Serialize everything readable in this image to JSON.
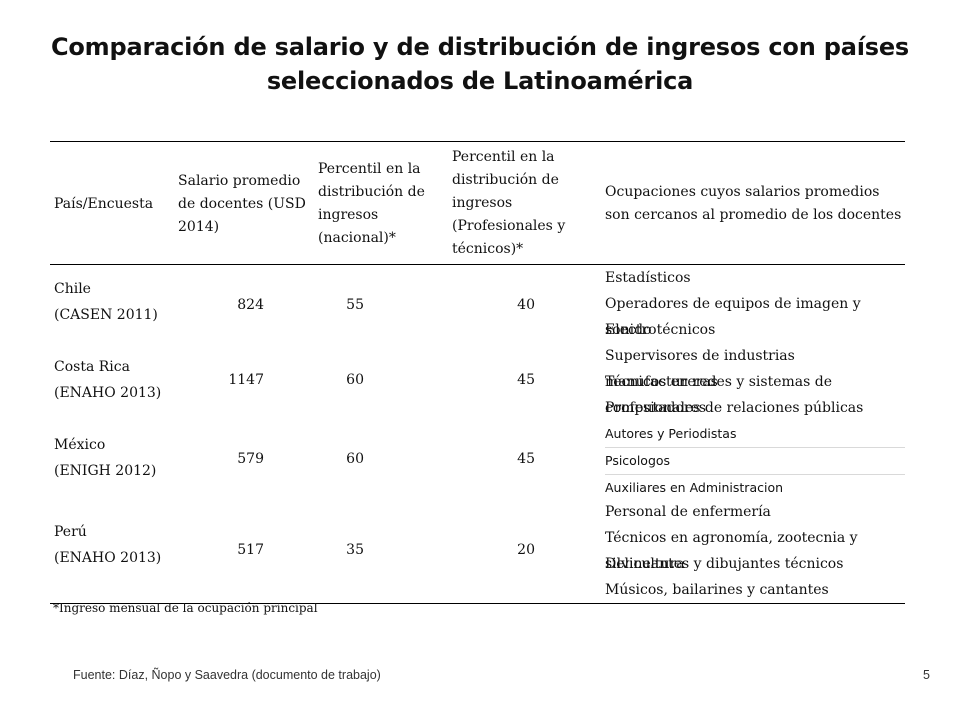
{
  "title": {
    "line1": "Comparación de salario y de distribución de ingresos con países",
    "line2": "seleccionados de Latinoamérica"
  },
  "table": {
    "headers": {
      "country": "País/Encuesta",
      "salary": "Salario promedio de docentes (USD 2014)",
      "pct_national": "Percentil en la distribución de ingresos (nacional)*",
      "pct_prof": "Percentil en la distribución de ingresos (Profesionales y técnicos)*",
      "occupations": "Ocupaciones cuyos salarios promedios son cercanos al promedio de los docentes"
    },
    "rows": [
      {
        "country": "Chile",
        "survey": "(CASEN 2011)",
        "salary": "824",
        "pct_national": "55",
        "pct_prof": "40",
        "occupations": [
          "Estadísticos",
          "Operadores de equipos de imagen y sonido",
          "Electrotécnicos"
        ]
      },
      {
        "country": "Costa Rica",
        "survey": "(ENAHO 2013)",
        "salary": "1147",
        "pct_national": "60",
        "pct_prof": "45",
        "occupations": [
          "Supervisores de industrias manufactureras",
          "Técnicos en redes y sistemas de computadores",
          "Profesionales de relaciones públicas"
        ]
      },
      {
        "country": "México",
        "survey": "(ENIGH 2012)",
        "salary": "579",
        "pct_national": "60",
        "pct_prof": "45",
        "occupations": [
          "Autores y Periodistas",
          "Psicologos",
          "Auxiliares en Administracion"
        ]
      },
      {
        "country": "Perú",
        "survey": "(ENAHO 2013)",
        "salary": "517",
        "pct_national": "35",
        "pct_prof": "20",
        "occupations": [
          "Personal de enfermería",
          "Técnicos en agronomía, zootecnia y silvicultura",
          "Delineantes y dibujantes técnicos",
          "Músicos, bailarines y cantantes"
        ]
      }
    ]
  },
  "footnote": "*Ingreso mensual de la ocupación principal",
  "source": "Fuente: Díaz, Ñopo y Saavedra (documento de trabajo)",
  "page_number": "5"
}
